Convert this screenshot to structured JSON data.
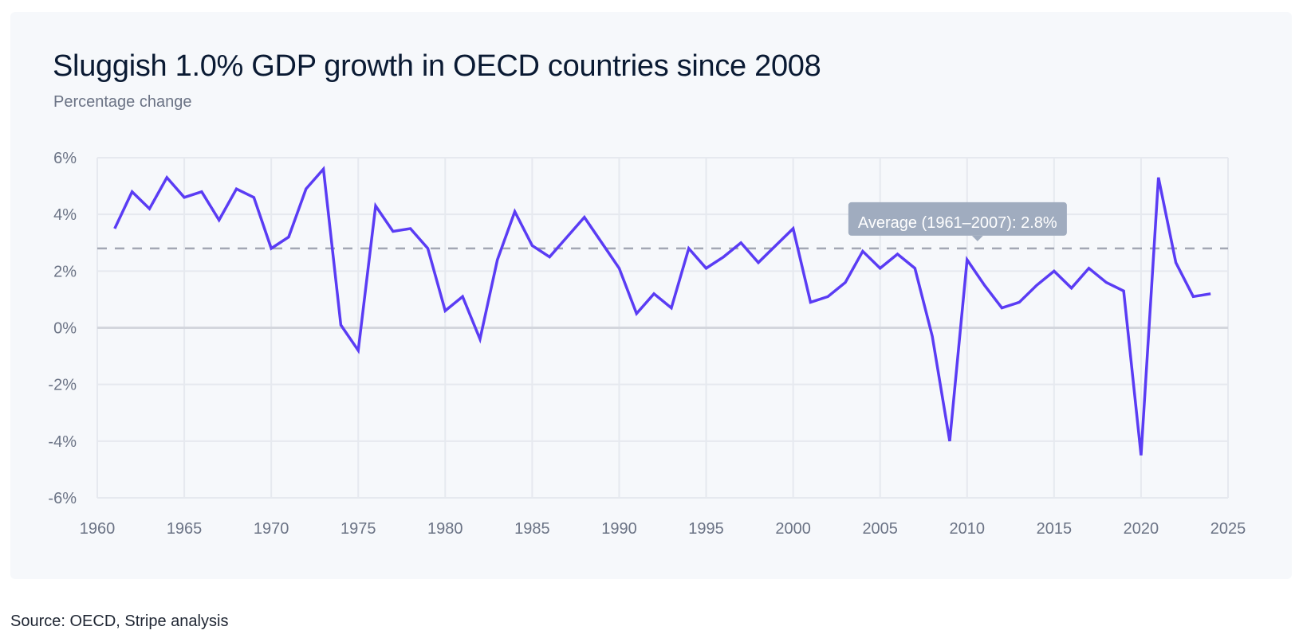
{
  "chart_data": {
    "type": "line",
    "title": "Sluggish 1.0% GDP growth in OECD countries since 2008",
    "subtitle": "Percentage change",
    "xlabel": "",
    "ylabel": "",
    "xlim": [
      1960,
      2025
    ],
    "ylim": [
      -6,
      6
    ],
    "x_ticks": [
      1960,
      1965,
      1970,
      1975,
      1980,
      1985,
      1990,
      1995,
      2000,
      2005,
      2010,
      2015,
      2020,
      2025
    ],
    "y_ticks": [
      -6,
      -4,
      -2,
      0,
      2,
      4,
      6
    ],
    "y_tick_labels": [
      "-6%",
      "-4%",
      "-2%",
      "0%",
      "2%",
      "4%",
      "6%"
    ],
    "grid": true,
    "series": [
      {
        "name": "OECD GDP growth",
        "color": "#5a3cf4",
        "x": [
          1961,
          1962,
          1963,
          1964,
          1965,
          1966,
          1967,
          1968,
          1969,
          1970,
          1971,
          1972,
          1973,
          1974,
          1975,
          1976,
          1977,
          1978,
          1979,
          1980,
          1981,
          1982,
          1983,
          1984,
          1985,
          1986,
          1987,
          1988,
          1989,
          1990,
          1991,
          1992,
          1993,
          1994,
          1995,
          1996,
          1997,
          1998,
          1999,
          2000,
          2001,
          2002,
          2003,
          2004,
          2005,
          2006,
          2007,
          2008,
          2009,
          2010,
          2011,
          2012,
          2013,
          2014,
          2015,
          2016,
          2017,
          2018,
          2019,
          2020,
          2021,
          2022,
          2023,
          2024
        ],
        "values": [
          3.5,
          4.8,
          4.2,
          5.3,
          4.6,
          4.8,
          3.8,
          4.9,
          4.6,
          2.8,
          3.2,
          4.9,
          5.6,
          0.1,
          -0.8,
          4.3,
          3.4,
          3.5,
          2.8,
          0.6,
          1.1,
          -0.4,
          2.4,
          4.1,
          2.9,
          2.5,
          3.2,
          3.9,
          3.0,
          2.1,
          0.5,
          1.2,
          0.7,
          2.8,
          2.1,
          2.5,
          3.0,
          2.3,
          2.9,
          3.5,
          0.9,
          1.1,
          1.6,
          2.7,
          2.1,
          2.6,
          2.1,
          -0.3,
          -4.0,
          2.4,
          1.5,
          0.7,
          0.9,
          1.5,
          2.0,
          1.4,
          2.1,
          1.6,
          1.3,
          -4.5,
          5.3,
          2.3,
          1.1,
          1.2
        ]
      }
    ],
    "reference_line": {
      "value": 2.8,
      "label": "Average (1961–2007): 2.8%",
      "label_year": 2010.6
    },
    "source": "Source: OECD, Stripe analysis"
  }
}
